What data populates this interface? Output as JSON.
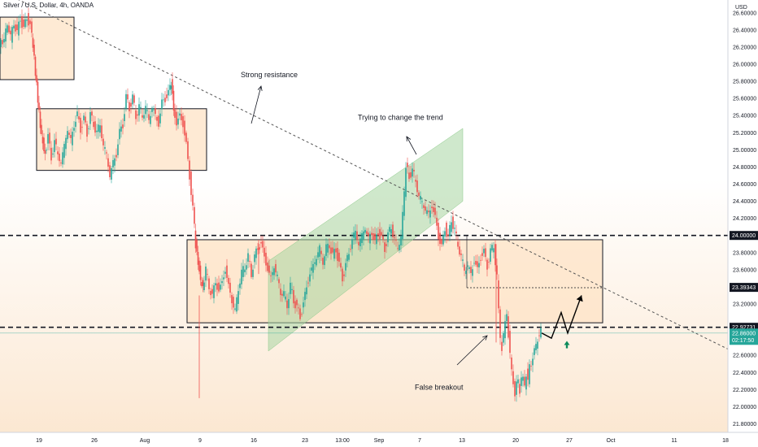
{
  "header": {
    "symbol_title": "Silver / U.S. Dollar, 4h, OANDA"
  },
  "axis": {
    "currency": "USD",
    "price_labels": [
      "26.60000",
      "26.40000",
      "26.20000",
      "26.00000",
      "25.80000",
      "25.60000",
      "25.40000",
      "25.20000",
      "25.00000",
      "24.80000",
      "24.60000",
      "24.40000",
      "24.20000",
      "23.80000",
      "23.60000",
      "23.20000",
      "22.60000",
      "22.40000",
      "22.20000",
      "22.00000",
      "21.80000"
    ],
    "date_labels": [
      "19",
      "26",
      "Aug",
      "9",
      "16",
      "23",
      "13:00",
      "Sep",
      "7",
      "13",
      "20",
      "27",
      "Oct",
      "11",
      "18"
    ]
  },
  "badges": {
    "level_24": "24.00000",
    "level_2339": "23.39343",
    "level_2293": "22.92731",
    "current_price": "22.86000",
    "countdown": "02:17:50"
  },
  "annotations": {
    "strong_resistance": "Strong resistance",
    "trying_change": "Trying to change the trend",
    "false_breakout": "False breakout"
  },
  "colors": {
    "up": "#26a69a",
    "down": "#ef5350",
    "text": "#131722",
    "zone_fill": "#fde3c6",
    "channel_fill": "#a8d5a2",
    "badge": "#131722"
  },
  "chart_data": {
    "type": "candlestick",
    "title": "Silver / U.S. Dollar, 4h, OANDA",
    "timeframe": "4h",
    "source": "OANDA",
    "ylabel": "USD",
    "ylim": [
      21.7,
      26.75
    ],
    "price_ticks": [
      26.6,
      26.4,
      26.2,
      26.0,
      25.8,
      25.6,
      25.4,
      25.2,
      25.0,
      24.8,
      24.6,
      24.4,
      24.2,
      23.8,
      23.6,
      23.2,
      22.6,
      22.4,
      22.2,
      22.0,
      21.8
    ],
    "date_ticks": [
      "19",
      "26",
      "Aug",
      "9",
      "16",
      "23",
      "13:00",
      "Sep",
      "7",
      "13",
      "20",
      "27",
      "Oct",
      "11",
      "18"
    ],
    "horizontal_levels": [
      24.0,
      22.92731
    ],
    "marked_levels": [
      24.0,
      23.39343,
      22.92731
    ],
    "current_price": 22.86,
    "path": [
      [
        0,
        26.2
      ],
      [
        6,
        26.3
      ],
      [
        10,
        26.5
      ],
      [
        14,
        26.3
      ],
      [
        18,
        26.5
      ],
      [
        22,
        26.35
      ],
      [
        26,
        26.55
      ],
      [
        30,
        26.4
      ],
      [
        34,
        26.55
      ],
      [
        38,
        26.45
      ],
      [
        41,
        26.2
      ],
      [
        44,
        25.9
      ],
      [
        47,
        25.6
      ],
      [
        50,
        25.3
      ],
      [
        53,
        25.1
      ],
      [
        56,
        24.95
      ],
      [
        60,
        25.15
      ],
      [
        64,
        24.9
      ],
      [
        68,
        25.1
      ],
      [
        72,
        24.95
      ],
      [
        76,
        24.85
      ],
      [
        80,
        25.05
      ],
      [
        84,
        25.25
      ],
      [
        88,
        25.1
      ],
      [
        92,
        25.3
      ],
      [
        96,
        25.4
      ],
      [
        100,
        25.25
      ],
      [
        104,
        25.35
      ],
      [
        108,
        25.2
      ],
      [
        112,
        25.4
      ],
      [
        116,
        25.3
      ],
      [
        120,
        25.2
      ],
      [
        124,
        25.3
      ],
      [
        128,
        25.05
      ],
      [
        132,
        24.95
      ],
      [
        136,
        24.7
      ],
      [
        140,
        24.85
      ],
      [
        144,
        24.95
      ],
      [
        148,
        25.2
      ],
      [
        152,
        25.3
      ],
      [
        156,
        25.6
      ],
      [
        160,
        25.5
      ],
      [
        164,
        25.6
      ],
      [
        168,
        25.4
      ],
      [
        172,
        25.5
      ],
      [
        176,
        25.4
      ],
      [
        180,
        25.5
      ],
      [
        184,
        25.35
      ],
      [
        188,
        25.5
      ],
      [
        192,
        25.4
      ],
      [
        196,
        25.3
      ],
      [
        200,
        25.55
      ],
      [
        204,
        25.6
      ],
      [
        208,
        25.65
      ],
      [
        211,
        25.8
      ],
      [
        214,
        25.5
      ],
      [
        218,
        25.3
      ],
      [
        222,
        25.4
      ],
      [
        226,
        25.3
      ],
      [
        230,
        25.05
      ],
      [
        234,
        24.7
      ],
      [
        238,
        24.3
      ],
      [
        241,
        23.9
      ],
      [
        244,
        23.7
      ],
      [
        247,
        23.5
      ],
      [
        250,
        23.4
      ],
      [
        254,
        23.6
      ],
      [
        258,
        23.4
      ],
      [
        262,
        23.3
      ],
      [
        266,
        23.45
      ],
      [
        270,
        23.35
      ],
      [
        274,
        23.45
      ],
      [
        278,
        23.6
      ],
      [
        282,
        23.4
      ],
      [
        286,
        23.25
      ],
      [
        290,
        23.1
      ],
      [
        294,
        23.4
      ],
      [
        298,
        23.55
      ],
      [
        302,
        23.65
      ],
      [
        306,
        23.75
      ],
      [
        310,
        23.55
      ],
      [
        314,
        23.75
      ],
      [
        318,
        23.85
      ],
      [
        322,
        23.9
      ],
      [
        326,
        23.75
      ],
      [
        330,
        23.6
      ],
      [
        334,
        23.5
      ],
      [
        338,
        23.65
      ],
      [
        342,
        23.5
      ],
      [
        346,
        23.35
      ],
      [
        350,
        23.3
      ],
      [
        354,
        23.2
      ],
      [
        358,
        23.4
      ],
      [
        362,
        23.25
      ],
      [
        366,
        23.15
      ],
      [
        370,
        23.05
      ],
      [
        374,
        23.2
      ],
      [
        378,
        23.4
      ],
      [
        382,
        23.55
      ],
      [
        386,
        23.65
      ],
      [
        390,
        23.75
      ],
      [
        394,
        23.85
      ],
      [
        398,
        23.7
      ],
      [
        402,
        23.85
      ],
      [
        406,
        23.9
      ],
      [
        410,
        23.75
      ],
      [
        414,
        23.85
      ],
      [
        418,
        23.65
      ],
      [
        422,
        23.5
      ],
      [
        426,
        23.65
      ],
      [
        430,
        23.8
      ],
      [
        434,
        23.95
      ],
      [
        438,
        24.05
      ],
      [
        442,
        23.9
      ],
      [
        446,
        24.0
      ],
      [
        450,
        24.1
      ],
      [
        454,
        23.95
      ],
      [
        458,
        24.05
      ],
      [
        462,
        23.9
      ],
      [
        466,
        24.05
      ],
      [
        470,
        23.95
      ],
      [
        474,
        23.85
      ],
      [
        478,
        24.0
      ],
      [
        482,
        24.1
      ],
      [
        486,
        23.95
      ],
      [
        490,
        23.85
      ],
      [
        494,
        24.0
      ],
      [
        498,
        24.5
      ],
      [
        500,
        24.8
      ],
      [
        504,
        24.7
      ],
      [
        508,
        24.75
      ],
      [
        512,
        24.65
      ],
      [
        516,
        24.45
      ],
      [
        520,
        24.4
      ],
      [
        524,
        24.3
      ],
      [
        528,
        24.25
      ],
      [
        532,
        24.35
      ],
      [
        536,
        24.2
      ],
      [
        540,
        24.0
      ],
      [
        544,
        23.85
      ],
      [
        548,
        24.1
      ],
      [
        552,
        23.95
      ],
      [
        556,
        24.2
      ],
      [
        560,
        24.05
      ],
      [
        564,
        23.9
      ],
      [
        568,
        23.75
      ],
      [
        572,
        23.6
      ],
      [
        576,
        23.65
      ],
      [
        580,
        23.55
      ],
      [
        584,
        23.7
      ],
      [
        588,
        23.6
      ],
      [
        592,
        23.75
      ],
      [
        596,
        23.8
      ],
      [
        600,
        23.65
      ],
      [
        604,
        23.8
      ],
      [
        608,
        23.9
      ],
      [
        612,
        23.5
      ],
      [
        614,
        23.1
      ],
      [
        616,
        22.8
      ],
      [
        618,
        22.7
      ],
      [
        620,
        22.85
      ],
      [
        622,
        22.95
      ],
      [
        624,
        23.1
      ],
      [
        626,
        22.85
      ],
      [
        628,
        22.6
      ],
      [
        630,
        22.4
      ],
      [
        632,
        22.3
      ],
      [
        634,
        22.15
      ],
      [
        636,
        22.25
      ],
      [
        638,
        22.3
      ],
      [
        640,
        22.2
      ],
      [
        642,
        22.35
      ],
      [
        644,
        22.3
      ],
      [
        646,
        22.25
      ],
      [
        648,
        22.4
      ],
      [
        650,
        22.3
      ],
      [
        652,
        22.45
      ],
      [
        654,
        22.5
      ],
      [
        656,
        22.6
      ],
      [
        658,
        22.65
      ],
      [
        660,
        22.7
      ],
      [
        662,
        22.8
      ],
      [
        664,
        22.85
      ],
      [
        666,
        22.87
      ]
    ],
    "projection": [
      [
        666,
        22.86
      ],
      [
        678,
        22.8
      ],
      [
        690,
        23.1
      ],
      [
        698,
        22.86
      ],
      [
        715,
        23.3
      ]
    ],
    "zones": [
      {
        "x0": 0,
        "x1": 91,
        "p0": 26.55,
        "p1": 25.82
      },
      {
        "x0": 45,
        "x1": 254,
        "p0": 25.48,
        "p1": 24.76
      },
      {
        "x0": 230,
        "x1": 741,
        "p0": 23.95,
        "p1": 22.98
      }
    ],
    "channel": {
      "pts": [
        [
          330,
          23.7
        ],
        [
          569,
          25.25
        ],
        [
          569,
          24.4
        ],
        [
          330,
          22.65
        ]
      ]
    },
    "trendline": [
      [
        0,
        26.86
      ],
      [
        932,
        22.5
      ]
    ],
    "support_line": {
      "x0": 574,
      "x1": 741,
      "price": 23.39
    },
    "wicks": [
      [
        245,
        23.3,
        22.1
      ],
      [
        318,
        23.95,
        23.55
      ],
      [
        610,
        23.9,
        22.75
      ]
    ],
    "annotations": [
      {
        "text": "Strong resistance",
        "time_index": 296,
        "price": 25.85
      },
      {
        "text": "Trying to change the trend",
        "time_index": 440,
        "price": 25.35
      },
      {
        "text": "False breakout",
        "time_index": 510,
        "price": 22.2
      }
    ],
    "grid": false
  }
}
